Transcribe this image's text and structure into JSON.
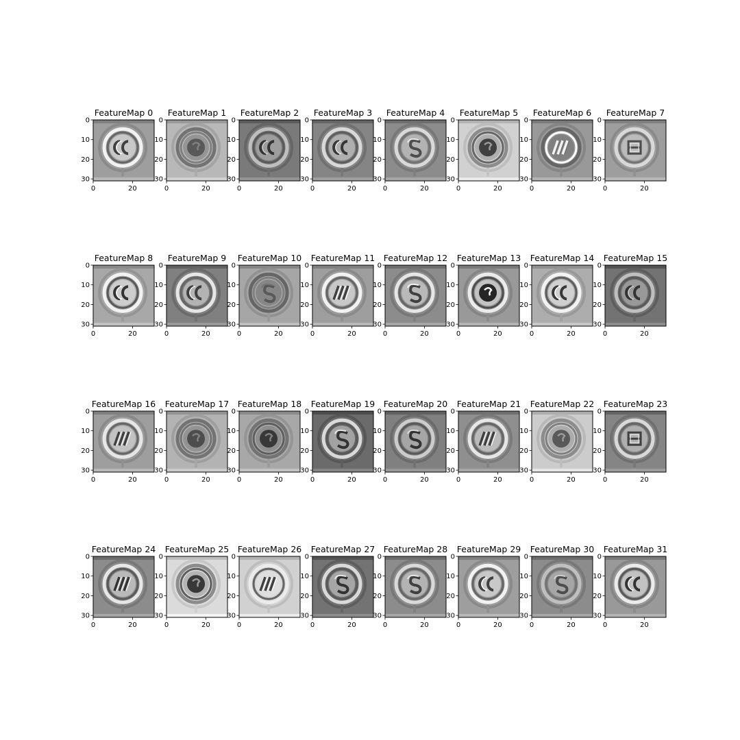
{
  "figure": {
    "background": "#ffffff",
    "colormap": "gray"
  },
  "chart_data": {
    "type": "heatmap",
    "description_note": "",
    "grid": {
      "rows": 4,
      "cols": 8
    },
    "image_shape": [
      32,
      32
    ],
    "xlim": [
      0,
      31
    ],
    "ylim": [
      31,
      0
    ],
    "xticks": [
      0,
      20
    ],
    "yticks": [
      0,
      10,
      20,
      30
    ],
    "panels": [
      {
        "title": "FeatureMap 0",
        "bg": 0.62,
        "ring": 0.95,
        "core": 0.25,
        "pattern": "double-c"
      },
      {
        "title": "FeatureMap 1",
        "bg": 0.72,
        "ring": 0.45,
        "core": 0.35,
        "pattern": "blob"
      },
      {
        "title": "FeatureMap 2",
        "bg": 0.48,
        "ring": 0.75,
        "core": 0.2,
        "pattern": "double-c"
      },
      {
        "title": "FeatureMap 3",
        "bg": 0.52,
        "ring": 0.85,
        "core": 0.22,
        "pattern": "double-c"
      },
      {
        "title": "FeatureMap 4",
        "bg": 0.55,
        "ring": 0.85,
        "core": 0.3,
        "pattern": "s"
      },
      {
        "title": "FeatureMap 5",
        "bg": 0.82,
        "ring": 0.55,
        "core": 0.25,
        "pattern": "blob"
      },
      {
        "title": "FeatureMap 6",
        "bg": 0.6,
        "ring": 0.4,
        "core": 0.95,
        "pattern": "slashes"
      },
      {
        "title": "FeatureMap 7",
        "bg": 0.62,
        "ring": 0.85,
        "core": 0.3,
        "pattern": "e"
      },
      {
        "title": "FeatureMap 8",
        "bg": 0.66,
        "ring": 0.95,
        "core": 0.2,
        "pattern": "double-c"
      },
      {
        "title": "FeatureMap 9",
        "bg": 0.5,
        "ring": 0.9,
        "core": 0.25,
        "pattern": "double-c"
      },
      {
        "title": "FeatureMap 10",
        "bg": 0.65,
        "ring": 0.4,
        "core": 0.35,
        "pattern": "s"
      },
      {
        "title": "FeatureMap 11",
        "bg": 0.62,
        "ring": 0.95,
        "core": 0.25,
        "pattern": "slashes"
      },
      {
        "title": "FeatureMap 12",
        "bg": 0.55,
        "ring": 0.9,
        "core": 0.25,
        "pattern": "s"
      },
      {
        "title": "FeatureMap 13",
        "bg": 0.6,
        "ring": 0.92,
        "core": 0.15,
        "pattern": "blob"
      },
      {
        "title": "FeatureMap 14",
        "bg": 0.68,
        "ring": 0.95,
        "core": 0.22,
        "pattern": "double-c"
      },
      {
        "title": "FeatureMap 15",
        "bg": 0.45,
        "ring": 0.75,
        "core": 0.2,
        "pattern": "double-c"
      },
      {
        "title": "FeatureMap 16",
        "bg": 0.62,
        "ring": 0.9,
        "core": 0.25,
        "pattern": "slashes"
      },
      {
        "title": "FeatureMap 17",
        "bg": 0.7,
        "ring": 0.45,
        "core": 0.3,
        "pattern": "blob"
      },
      {
        "title": "FeatureMap 18",
        "bg": 0.66,
        "ring": 0.45,
        "core": 0.22,
        "pattern": "blob"
      },
      {
        "title": "FeatureMap 19",
        "bg": 0.42,
        "ring": 0.85,
        "core": 0.2,
        "pattern": "s"
      },
      {
        "title": "FeatureMap 20",
        "bg": 0.5,
        "ring": 0.8,
        "core": 0.2,
        "pattern": "s"
      },
      {
        "title": "FeatureMap 21",
        "bg": 0.56,
        "ring": 0.9,
        "core": 0.25,
        "pattern": "slashes"
      },
      {
        "title": "FeatureMap 22",
        "bg": 0.8,
        "ring": 0.55,
        "core": 0.35,
        "pattern": "blob"
      },
      {
        "title": "FeatureMap 23",
        "bg": 0.52,
        "ring": 0.85,
        "core": 0.25,
        "pattern": "e"
      },
      {
        "title": "FeatureMap 24",
        "bg": 0.55,
        "ring": 0.9,
        "core": 0.2,
        "pattern": "slashes"
      },
      {
        "title": "FeatureMap 25",
        "bg": 0.86,
        "ring": 0.55,
        "core": 0.22,
        "pattern": "blob"
      },
      {
        "title": "FeatureMap 26",
        "bg": 0.82,
        "ring": 0.92,
        "core": 0.25,
        "pattern": "slashes"
      },
      {
        "title": "FeatureMap 27",
        "bg": 0.45,
        "ring": 0.85,
        "core": 0.2,
        "pattern": "s"
      },
      {
        "title": "FeatureMap 28",
        "bg": 0.55,
        "ring": 0.85,
        "core": 0.25,
        "pattern": "s"
      },
      {
        "title": "FeatureMap 29",
        "bg": 0.62,
        "ring": 0.95,
        "core": 0.25,
        "pattern": "double-c"
      },
      {
        "title": "FeatureMap 30",
        "bg": 0.55,
        "ring": 0.75,
        "core": 0.3,
        "pattern": "s"
      },
      {
        "title": "FeatureMap 31",
        "bg": 0.6,
        "ring": 0.92,
        "core": 0.2,
        "pattern": "double-c"
      }
    ]
  }
}
